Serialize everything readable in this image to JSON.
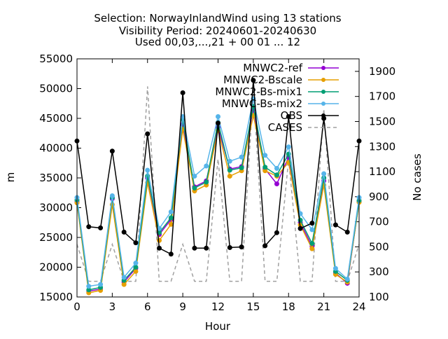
{
  "chart_data": {
    "type": "line",
    "title_lines": [
      "Selection: NorwayInlandWind using    13 stations",
      "Visibility   Period: 20240601-20240630",
      "Used 00,03,...,21 + 00 01 ... 12"
    ],
    "xlabel": "Hour",
    "ylabel": "m",
    "y2label": "No cases",
    "xlim": [
      0,
      24
    ],
    "ylim": [
      15000,
      55000
    ],
    "y2lim": [
      100,
      2000
    ],
    "x_ticks": [
      0,
      3,
      6,
      9,
      12,
      15,
      18,
      21,
      24
    ],
    "y_ticks": [
      15000,
      20000,
      25000,
      30000,
      35000,
      40000,
      45000,
      50000,
      55000
    ],
    "y2_ticks": [
      100,
      300,
      500,
      700,
      900,
      1100,
      1300,
      1500,
      1700,
      1900
    ],
    "legend_position": "top-right",
    "x": [
      0,
      1,
      2,
      3,
      4,
      5,
      6,
      7,
      8,
      9,
      10,
      11,
      12,
      13,
      14,
      15,
      16,
      17,
      18,
      19,
      20,
      21,
      22,
      23,
      24
    ],
    "series": [
      {
        "name": "MNWC2-ref",
        "color": "#9400d3",
        "marker": "plus",
        "axis": "y",
        "values": [
          31000,
          16000,
          16300,
          31500,
          17500,
          19800,
          35000,
          25500,
          28000,
          44000,
          33500,
          34500,
          43500,
          36500,
          36900,
          46500,
          36500,
          34000,
          38500,
          27500,
          23500,
          34500,
          19000,
          17300,
          31000
        ]
      },
      {
        "name": "MNWC2-Bscale",
        "color": "#e69f00",
        "marker": "plus",
        "axis": "y",
        "values": [
          30800,
          15700,
          16100,
          30500,
          17100,
          19300,
          34200,
          24500,
          27200,
          43200,
          32800,
          33800,
          43000,
          35300,
          36200,
          45500,
          36200,
          35300,
          37600,
          27100,
          23100,
          33800,
          18800,
          17500,
          30900
        ]
      },
      {
        "name": "MNWC2-Bs-mix1",
        "color": "#009e73",
        "marker": "plus",
        "axis": "y",
        "values": [
          31300,
          16200,
          16600,
          31700,
          17800,
          20000,
          35300,
          25800,
          28300,
          44800,
          33300,
          34300,
          44300,
          36300,
          36700,
          47000,
          36800,
          35500,
          39000,
          27900,
          24000,
          35000,
          19300,
          17800,
          31200
        ]
      },
      {
        "name": "MNWC-Bs-mix2",
        "color": "#56b4e9",
        "marker": "plus",
        "axis": "y",
        "values": [
          31700,
          16800,
          17100,
          32000,
          18300,
          20700,
          36300,
          26500,
          29300,
          45300,
          35300,
          37000,
          45300,
          37800,
          38500,
          48300,
          38800,
          36600,
          40200,
          29000,
          26300,
          35700,
          19800,
          18000,
          31700
        ]
      },
      {
        "name": "OBS",
        "color": "#000000",
        "marker": "plus",
        "axis": "y",
        "values": [
          41200,
          26800,
          26600,
          39500,
          25900,
          24100,
          42400,
          23200,
          22200,
          49300,
          23200,
          23200,
          44200,
          23300,
          23400,
          51400,
          23600,
          25800,
          45300,
          26500,
          27400,
          45000,
          27100,
          25900,
          41200
        ]
      },
      {
        "name": "CASES",
        "color": "#a0a0a0",
        "dashed": true,
        "axis": "y2",
        "values": [
          520,
          225,
          225,
          520,
          225,
          225,
          1780,
          225,
          225,
          520,
          225,
          225,
          1200,
          225,
          225,
          1750,
          225,
          225,
          1200,
          225,
          225,
          1600,
          225,
          225,
          520
        ]
      }
    ]
  }
}
